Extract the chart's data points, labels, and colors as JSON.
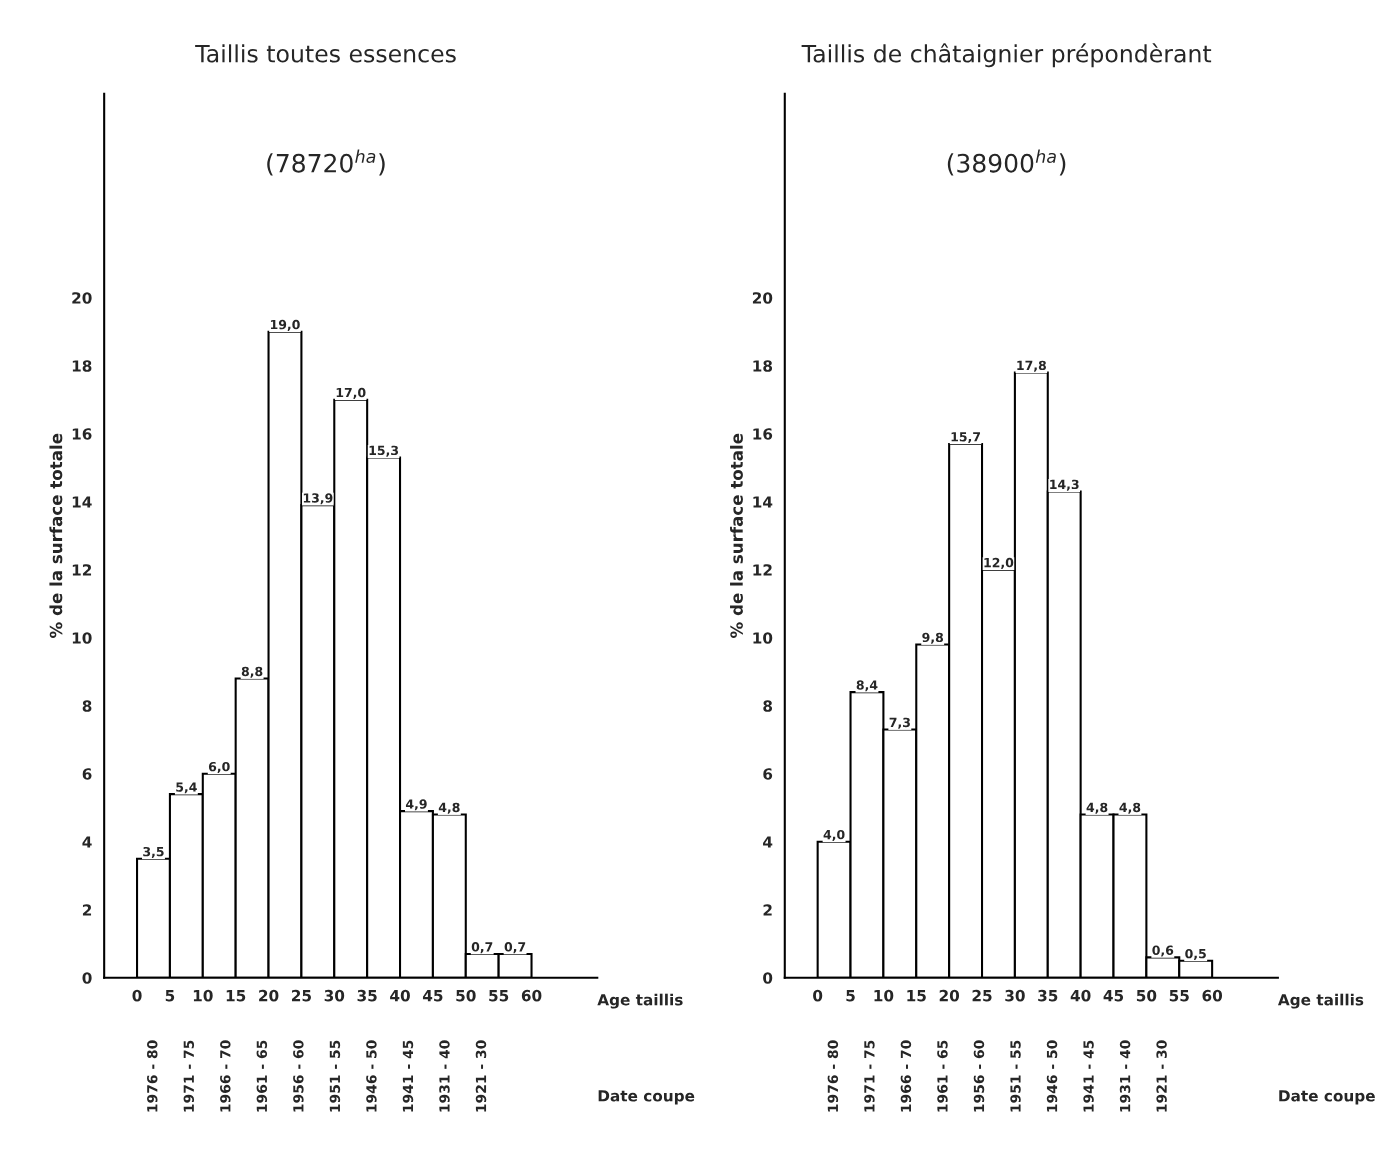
{
  "chart_data": [
    {
      "type": "histogram",
      "title": "Taillis toutes essences",
      "subtitle": "(78720$^{ha}$)",
      "ylabel": "% de la surface totale",
      "xlabel": "Age taillis",
      "bins": [
        0,
        5,
        10,
        15,
        20,
        25,
        30,
        35,
        40,
        45,
        50,
        55,
        60
      ],
      "values": [
        3.5,
        5.4,
        6.0,
        8.8,
        19.0,
        13.9,
        17.0,
        15.3,
        4.9,
        4.8,
        0.7,
        0.7
      ],
      "value_labels": [
        "3,5",
        "5,4",
        "6,0",
        "8,8",
        "19,0",
        "13,9",
        "17,0",
        "15,3",
        "4,9",
        "4,8",
        "0,7",
        "0,7"
      ],
      "color": "#ffffff",
      "xlim": [
        -5,
        70
      ],
      "xticks": [
        0,
        5,
        10,
        15,
        20,
        25,
        30,
        35,
        40,
        45,
        50,
        55,
        60
      ],
      "ylim": [
        0,
        26
      ],
      "yticks": [
        0,
        2,
        4,
        6,
        8,
        10,
        12,
        14,
        16,
        18,
        20
      ],
      "annotations": [
        "1976 - 80",
        "1971 - 75",
        "1966 - 70",
        "1961 - 65",
        "1956 - 60",
        "1951 - 55",
        "1946 - 50",
        "1941 - 45",
        "1931 - 40",
        "1921 - 30",
        "Date coupe"
      ],
      "grid": false,
      "legend": false
    },
    {
      "type": "histogram",
      "title": "Taillis de châtaignier prépondèrant",
      "subtitle": "(38900$^{ha}$)",
      "ylabel": "% de la surface totale",
      "xlabel": "Age taillis",
      "bins": [
        0,
        5,
        10,
        15,
        20,
        25,
        30,
        35,
        40,
        45,
        50,
        55,
        60
      ],
      "values": [
        4.0,
        8.4,
        7.3,
        9.8,
        15.7,
        12.0,
        17.8,
        14.3,
        4.8,
        4.8,
        0.6,
        0.5
      ],
      "value_labels": [
        "4,0",
        "8,4",
        "7,3",
        "9,8",
        "15,7",
        "12,0",
        "17,8",
        "14,3",
        "4,8",
        "4,8",
        "0,6",
        "0,5"
      ],
      "color": "#ffffff",
      "xlim": [
        -5,
        70
      ],
      "xticks": [
        0,
        5,
        10,
        15,
        20,
        25,
        30,
        35,
        40,
        45,
        50,
        55,
        60
      ],
      "ylim": [
        0,
        26
      ],
      "yticks": [
        0,
        2,
        4,
        6,
        8,
        10,
        12,
        14,
        16,
        18,
        20
      ],
      "annotations": [
        "1976 - 80",
        "1971 - 75",
        "1966 - 70",
        "1961 - 65",
        "1956 - 60",
        "1951 - 55",
        "1946 - 50",
        "1941 - 45",
        "1931 - 40",
        "1921 - 30",
        "Date coupe"
      ],
      "grid": false,
      "legend": false
    }
  ]
}
